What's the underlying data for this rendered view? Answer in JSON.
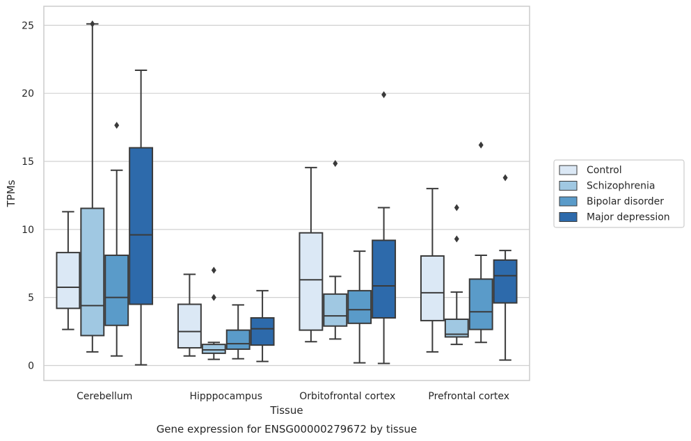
{
  "chart_data": {
    "type": "box",
    "categories": [
      "Cerebellum",
      "Hipppocampus",
      "Orbitofrontal cortex",
      "Prefrontal cortex"
    ],
    "xlabel": "Tissue",
    "ylabel": "TPMs",
    "caption": "Gene expression for ENSG00000279672 by tissue",
    "ylim": [
      -1.1,
      26.4
    ],
    "yticks": [
      0,
      5,
      10,
      15,
      20,
      25
    ],
    "grid": "horizontal",
    "legend_position": "right",
    "series": [
      {
        "name": "Control",
        "color": "#dbe8f5",
        "boxes": [
          {
            "whisker_low": 2.65,
            "q1": 4.2,
            "median": 5.75,
            "q3": 8.3,
            "whisker_high": 11.3,
            "outliers": []
          },
          {
            "whisker_low": 0.7,
            "q1": 1.3,
            "median": 2.5,
            "q3": 4.5,
            "whisker_high": 6.7,
            "outliers": []
          },
          {
            "whisker_low": 1.75,
            "q1": 2.6,
            "median": 6.3,
            "q3": 9.75,
            "whisker_high": 14.55,
            "outliers": []
          },
          {
            "whisker_low": 1.0,
            "q1": 3.3,
            "median": 5.35,
            "q3": 8.05,
            "whisker_high": 13.0,
            "outliers": []
          }
        ]
      },
      {
        "name": "Schizophrenia",
        "color": "#a0c8e2",
        "boxes": [
          {
            "whisker_low": 1.0,
            "q1": 2.2,
            "median": 4.4,
            "q3": 11.55,
            "whisker_high": 25.1,
            "outliers": [
              25.1
            ]
          },
          {
            "whisker_low": 0.45,
            "q1": 0.9,
            "median": 1.15,
            "q3": 1.55,
            "whisker_high": 1.7,
            "outliers": [
              7.0,
              5.0
            ]
          },
          {
            "whisker_low": 1.95,
            "q1": 2.9,
            "median": 3.65,
            "q3": 5.25,
            "whisker_high": 6.55,
            "outliers": [
              14.85
            ]
          },
          {
            "whisker_low": 1.55,
            "q1": 2.1,
            "median": 2.3,
            "q3": 3.4,
            "whisker_high": 5.4,
            "outliers": [
              11.6,
              9.3
            ]
          }
        ]
      },
      {
        "name": "Bipolar disorder",
        "color": "#5a9bc9",
        "boxes": [
          {
            "whisker_low": 0.7,
            "q1": 2.95,
            "median": 5.0,
            "q3": 8.1,
            "whisker_high": 14.35,
            "outliers": [
              17.65
            ]
          },
          {
            "whisker_low": 0.5,
            "q1": 1.2,
            "median": 1.6,
            "q3": 2.6,
            "whisker_high": 4.45,
            "outliers": []
          },
          {
            "whisker_low": 0.2,
            "q1": 3.1,
            "median": 4.1,
            "q3": 5.5,
            "whisker_high": 8.4,
            "outliers": []
          },
          {
            "whisker_low": 1.7,
            "q1": 2.65,
            "median": 3.95,
            "q3": 6.35,
            "whisker_high": 8.1,
            "outliers": [
              16.2
            ]
          }
        ]
      },
      {
        "name": "Major depression",
        "color": "#2d6aab",
        "boxes": [
          {
            "whisker_low": 0.05,
            "q1": 4.5,
            "median": 9.6,
            "q3": 16.0,
            "whisker_high": 21.7,
            "outliers": []
          },
          {
            "whisker_low": 0.3,
            "q1": 1.5,
            "median": 2.7,
            "q3": 3.5,
            "whisker_high": 5.5,
            "outliers": []
          },
          {
            "whisker_low": 0.15,
            "q1": 3.5,
            "median": 5.85,
            "q3": 9.2,
            "whisker_high": 11.6,
            "outliers": [
              19.9
            ]
          },
          {
            "whisker_low": 0.4,
            "q1": 4.6,
            "median": 6.6,
            "q3": 7.75,
            "whisker_high": 8.45,
            "outliers": [
              13.8
            ]
          }
        ]
      }
    ]
  }
}
